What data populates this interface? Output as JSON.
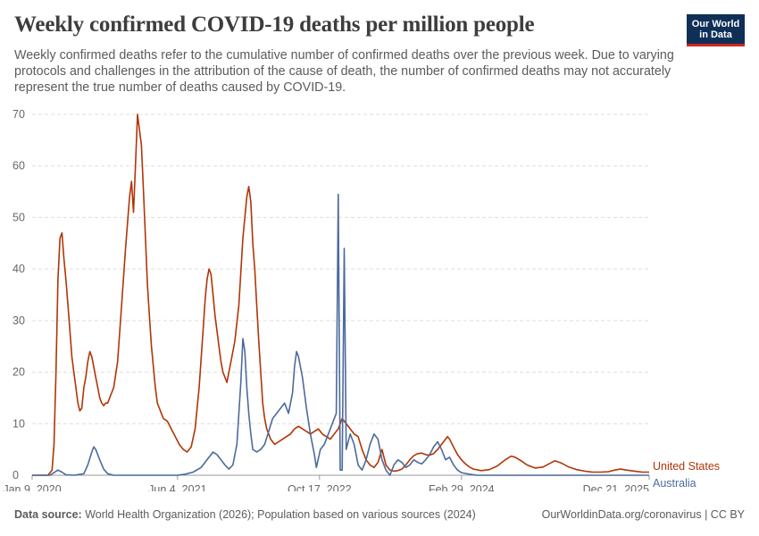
{
  "header": {
    "title": "Weekly confirmed COVID-19 deaths per million people",
    "subtitle": "Weekly confirmed deaths refer to the cumulative number of confirmed deaths over the previous week. Due to varying protocols and challenges in the attribution of the cause of death, the number of confirmed deaths may not accurately represent the true number of deaths caused by COVID-19."
  },
  "logo": {
    "line1": "Our World",
    "line2": "in Data"
  },
  "footer": {
    "source_label": "Data source:",
    "source_text": " World Health Organization (2026); Population based on various sources (2024)",
    "credit": "OurWorldinData.org/coronavirus | CC BY"
  },
  "colors": {
    "united_states": "#b13507",
    "australia": "#4c6a9c",
    "grid": "#dddddd",
    "axis": "#666666"
  },
  "chart_data": {
    "type": "line",
    "title": "Weekly confirmed COVID-19 deaths per million people",
    "ylim": [
      0,
      70
    ],
    "yticks": [
      0,
      10,
      20,
      30,
      40,
      50,
      60,
      70
    ],
    "xlim": [
      "2020-01-09",
      "2025-12-21"
    ],
    "xticks": [
      "Jan 9, 2020",
      "Jun 4, 2021",
      "Oct 17, 2022",
      "Feb 29, 2024",
      "Dec 21, 2025"
    ],
    "grid": "horizontal",
    "legend": "end-labels-right",
    "series": [
      {
        "name": "United States",
        "color": "#b13507",
        "points": [
          [
            "2020-01-09",
            0
          ],
          [
            "2020-03-05",
            0
          ],
          [
            "2020-03-19",
            1
          ],
          [
            "2020-03-26",
            6
          ],
          [
            "2020-04-02",
            20
          ],
          [
            "2020-04-09",
            38
          ],
          [
            "2020-04-16",
            46
          ],
          [
            "2020-04-23",
            47
          ],
          [
            "2020-04-30",
            42
          ],
          [
            "2020-05-07",
            38
          ],
          [
            "2020-05-14",
            33
          ],
          [
            "2020-05-21",
            28
          ],
          [
            "2020-05-28",
            23
          ],
          [
            "2020-06-04",
            20
          ],
          [
            "2020-06-11",
            17
          ],
          [
            "2020-06-18",
            14
          ],
          [
            "2020-06-25",
            12.5
          ],
          [
            "2020-07-02",
            13
          ],
          [
            "2020-07-09",
            17
          ],
          [
            "2020-07-16",
            19
          ],
          [
            "2020-07-23",
            22
          ],
          [
            "2020-07-30",
            24
          ],
          [
            "2020-08-06",
            23
          ],
          [
            "2020-08-13",
            21
          ],
          [
            "2020-08-20",
            19
          ],
          [
            "2020-08-27",
            17
          ],
          [
            "2020-09-03",
            15
          ],
          [
            "2020-09-10",
            14
          ],
          [
            "2020-09-17",
            13.5
          ],
          [
            "2020-09-24",
            14
          ],
          [
            "2020-10-01",
            14
          ],
          [
            "2020-10-08",
            15
          ],
          [
            "2020-10-22",
            17
          ],
          [
            "2020-11-05",
            22
          ],
          [
            "2020-11-19",
            33
          ],
          [
            "2020-12-03",
            44
          ],
          [
            "2020-12-17",
            54
          ],
          [
            "2020-12-24",
            57
          ],
          [
            "2020-12-31",
            51
          ],
          [
            "2021-01-07",
            60
          ],
          [
            "2021-01-14",
            70
          ],
          [
            "2021-01-21",
            67
          ],
          [
            "2021-01-28",
            64
          ],
          [
            "2021-02-04",
            55
          ],
          [
            "2021-02-11",
            46
          ],
          [
            "2021-02-18",
            37
          ],
          [
            "2021-02-25",
            31
          ],
          [
            "2021-03-04",
            25
          ],
          [
            "2021-03-11",
            21
          ],
          [
            "2021-03-18",
            17
          ],
          [
            "2021-03-25",
            14
          ],
          [
            "2021-04-01",
            13
          ],
          [
            "2021-04-08",
            12
          ],
          [
            "2021-04-15",
            11
          ],
          [
            "2021-04-29",
            10.5
          ],
          [
            "2021-05-13",
            9
          ],
          [
            "2021-05-27",
            7.5
          ],
          [
            "2021-06-10",
            6
          ],
          [
            "2021-06-24",
            5
          ],
          [
            "2021-07-08",
            4.5
          ],
          [
            "2021-07-22",
            5.5
          ],
          [
            "2021-08-05",
            9
          ],
          [
            "2021-08-19",
            17
          ],
          [
            "2021-09-02",
            28
          ],
          [
            "2021-09-09",
            34
          ],
          [
            "2021-09-16",
            38
          ],
          [
            "2021-09-23",
            40
          ],
          [
            "2021-09-30",
            39
          ],
          [
            "2021-10-07",
            35
          ],
          [
            "2021-10-14",
            31
          ],
          [
            "2021-10-21",
            28
          ],
          [
            "2021-10-28",
            25
          ],
          [
            "2021-11-04",
            22
          ],
          [
            "2021-11-11",
            20
          ],
          [
            "2021-11-25",
            18
          ],
          [
            "2021-12-09",
            22
          ],
          [
            "2021-12-23",
            26
          ],
          [
            "2022-01-06",
            33
          ],
          [
            "2022-01-20",
            46
          ],
          [
            "2022-02-03",
            54
          ],
          [
            "2022-02-10",
            56
          ],
          [
            "2022-02-17",
            53
          ],
          [
            "2022-02-24",
            45
          ],
          [
            "2022-03-03",
            40
          ],
          [
            "2022-03-10",
            33
          ],
          [
            "2022-03-17",
            26
          ],
          [
            "2022-03-24",
            20
          ],
          [
            "2022-03-31",
            14
          ],
          [
            "2022-04-07",
            11
          ],
          [
            "2022-04-14",
            9
          ],
          [
            "2022-04-28",
            7
          ],
          [
            "2022-05-12",
            6
          ],
          [
            "2022-05-26",
            6.5
          ],
          [
            "2022-06-09",
            7
          ],
          [
            "2022-06-23",
            7.5
          ],
          [
            "2022-07-07",
            8
          ],
          [
            "2022-07-21",
            9
          ],
          [
            "2022-08-04",
            9.5
          ],
          [
            "2022-08-18",
            9
          ],
          [
            "2022-09-01",
            8.5
          ],
          [
            "2022-09-15",
            8
          ],
          [
            "2022-09-29",
            8.5
          ],
          [
            "2022-10-13",
            9
          ],
          [
            "2022-10-27",
            8
          ],
          [
            "2022-11-10",
            7.5
          ],
          [
            "2022-11-24",
            7
          ],
          [
            "2022-12-08",
            8
          ],
          [
            "2022-12-22",
            9
          ],
          [
            "2023-01-05",
            11
          ],
          [
            "2023-01-19",
            10
          ],
          [
            "2023-02-02",
            9
          ],
          [
            "2023-02-16",
            8
          ],
          [
            "2023-03-02",
            7.5
          ],
          [
            "2023-03-16",
            5
          ],
          [
            "2023-03-30",
            3
          ],
          [
            "2023-04-13",
            2
          ],
          [
            "2023-04-27",
            1.5
          ],
          [
            "2023-05-11",
            2.5
          ],
          [
            "2023-05-25",
            5
          ],
          [
            "2023-06-08",
            2
          ],
          [
            "2023-06-22",
            1
          ],
          [
            "2023-07-06",
            0.8
          ],
          [
            "2023-07-20",
            0.9
          ],
          [
            "2023-08-03",
            1.2
          ],
          [
            "2023-08-17",
            2
          ],
          [
            "2023-08-31",
            3
          ],
          [
            "2023-09-14",
            3.8
          ],
          [
            "2023-09-28",
            4.2
          ],
          [
            "2023-10-12",
            4.3
          ],
          [
            "2023-10-26",
            4
          ],
          [
            "2023-11-09",
            3.9
          ],
          [
            "2023-11-23",
            4.2
          ],
          [
            "2023-12-07",
            5
          ],
          [
            "2023-12-21",
            6
          ],
          [
            "2024-01-04",
            7
          ],
          [
            "2024-01-11",
            7.5
          ],
          [
            "2024-01-18",
            7
          ],
          [
            "2024-02-01",
            5.5
          ],
          [
            "2024-02-15",
            4
          ],
          [
            "2024-02-29",
            3
          ],
          [
            "2024-03-14",
            2.2
          ],
          [
            "2024-03-28",
            1.6
          ],
          [
            "2024-04-11",
            1.2
          ],
          [
            "2024-05-09",
            0.9
          ],
          [
            "2024-06-06",
            1.1
          ],
          [
            "2024-07-04",
            1.8
          ],
          [
            "2024-08-01",
            3
          ],
          [
            "2024-08-22",
            3.7
          ],
          [
            "2024-09-05",
            3.5
          ],
          [
            "2024-09-26",
            2.8
          ],
          [
            "2024-10-17",
            2
          ],
          [
            "2024-11-14",
            1.4
          ],
          [
            "2024-12-12",
            1.6
          ],
          [
            "2025-01-09",
            2.4
          ],
          [
            "2025-01-23",
            2.8
          ],
          [
            "2025-02-13",
            2.4
          ],
          [
            "2025-03-13",
            1.6
          ],
          [
            "2025-04-10",
            1.1
          ],
          [
            "2025-05-08",
            0.8
          ],
          [
            "2025-06-05",
            0.6
          ],
          [
            "2025-07-03",
            0.6
          ],
          [
            "2025-07-31",
            0.7
          ],
          [
            "2025-08-21",
            1
          ],
          [
            "2025-09-11",
            1.2
          ],
          [
            "2025-10-02",
            1
          ],
          [
            "2025-10-30",
            0.8
          ],
          [
            "2025-11-27",
            0.6
          ],
          [
            "2025-12-21",
            0.6
          ]
        ]
      },
      {
        "name": "Australia",
        "color": "#4c6a9c",
        "points": [
          [
            "2020-01-09",
            0
          ],
          [
            "2020-03-12",
            0
          ],
          [
            "2020-03-26",
            0.5
          ],
          [
            "2020-04-09",
            1
          ],
          [
            "2020-04-23",
            0.6
          ],
          [
            "2020-05-07",
            0.1
          ],
          [
            "2020-06-04",
            0
          ],
          [
            "2020-07-09",
            0.3
          ],
          [
            "2020-07-23",
            2
          ],
          [
            "2020-08-06",
            4.5
          ],
          [
            "2020-08-13",
            5.5
          ],
          [
            "2020-08-20",
            5
          ],
          [
            "2020-09-03",
            3
          ],
          [
            "2020-09-17",
            1.2
          ],
          [
            "2020-10-01",
            0.3
          ],
          [
            "2020-10-22",
            0
          ],
          [
            "2021-06-03",
            0
          ],
          [
            "2021-07-01",
            0.2
          ],
          [
            "2021-07-29",
            0.6
          ],
          [
            "2021-08-26",
            1.5
          ],
          [
            "2021-09-23",
            3.5
          ],
          [
            "2021-10-07",
            4.5
          ],
          [
            "2021-10-21",
            4
          ],
          [
            "2021-11-04",
            3
          ],
          [
            "2021-11-18",
            2
          ],
          [
            "2021-12-02",
            1.2
          ],
          [
            "2021-12-16",
            2
          ],
          [
            "2021-12-30",
            6
          ],
          [
            "2022-01-13",
            18
          ],
          [
            "2022-01-20",
            26.5
          ],
          [
            "2022-01-27",
            24
          ],
          [
            "2022-02-03",
            17
          ],
          [
            "2022-02-10",
            12
          ],
          [
            "2022-02-17",
            8
          ],
          [
            "2022-02-24",
            5
          ],
          [
            "2022-03-10",
            4.5
          ],
          [
            "2022-03-24",
            5
          ],
          [
            "2022-04-07",
            6
          ],
          [
            "2022-04-21",
            8.5
          ],
          [
            "2022-05-05",
            11
          ],
          [
            "2022-05-19",
            12
          ],
          [
            "2022-06-02",
            13
          ],
          [
            "2022-06-16",
            14
          ],
          [
            "2022-06-30",
            12
          ],
          [
            "2022-07-14",
            16
          ],
          [
            "2022-07-21",
            21
          ],
          [
            "2022-07-28",
            24
          ],
          [
            "2022-08-04",
            23
          ],
          [
            "2022-08-18",
            19
          ],
          [
            "2022-09-01",
            13
          ],
          [
            "2022-09-15",
            8
          ],
          [
            "2022-09-29",
            4
          ],
          [
            "2022-10-06",
            1.5
          ],
          [
            "2022-10-20",
            5
          ],
          [
            "2022-11-03",
            6
          ],
          [
            "2022-11-17",
            8
          ],
          [
            "2022-12-01",
            10
          ],
          [
            "2022-12-15",
            12
          ],
          [
            "2022-12-22",
            54.5
          ],
          [
            "2022-12-29",
            1
          ],
          [
            "2023-01-05",
            1
          ],
          [
            "2023-01-12",
            44
          ],
          [
            "2023-01-19",
            5
          ],
          [
            "2023-02-02",
            8
          ],
          [
            "2023-02-16",
            6
          ],
          [
            "2023-03-02",
            2
          ],
          [
            "2023-03-16",
            1
          ],
          [
            "2023-03-30",
            3
          ],
          [
            "2023-04-13",
            6
          ],
          [
            "2023-04-27",
            8
          ],
          [
            "2023-05-11",
            7
          ],
          [
            "2023-05-25",
            3
          ],
          [
            "2023-06-08",
            1
          ],
          [
            "2023-06-22",
            0
          ],
          [
            "2023-07-06",
            2
          ],
          [
            "2023-07-20",
            3
          ],
          [
            "2023-08-03",
            2.5
          ],
          [
            "2023-08-17",
            1.5
          ],
          [
            "2023-08-31",
            2
          ],
          [
            "2023-09-14",
            3
          ],
          [
            "2023-09-28",
            2.5
          ],
          [
            "2023-10-12",
            2.2
          ],
          [
            "2023-10-26",
            3
          ],
          [
            "2023-11-09",
            4
          ],
          [
            "2023-11-23",
            5.5
          ],
          [
            "2023-12-07",
            6.5
          ],
          [
            "2023-12-21",
            5
          ],
          [
            "2024-01-04",
            3
          ],
          [
            "2024-01-18",
            3.5
          ],
          [
            "2024-02-01",
            2
          ],
          [
            "2024-02-15",
            1
          ],
          [
            "2024-02-29",
            0.5
          ],
          [
            "2024-03-28",
            0.2
          ],
          [
            "2024-04-25",
            0
          ],
          [
            "2025-12-21",
            0
          ]
        ]
      }
    ]
  }
}
